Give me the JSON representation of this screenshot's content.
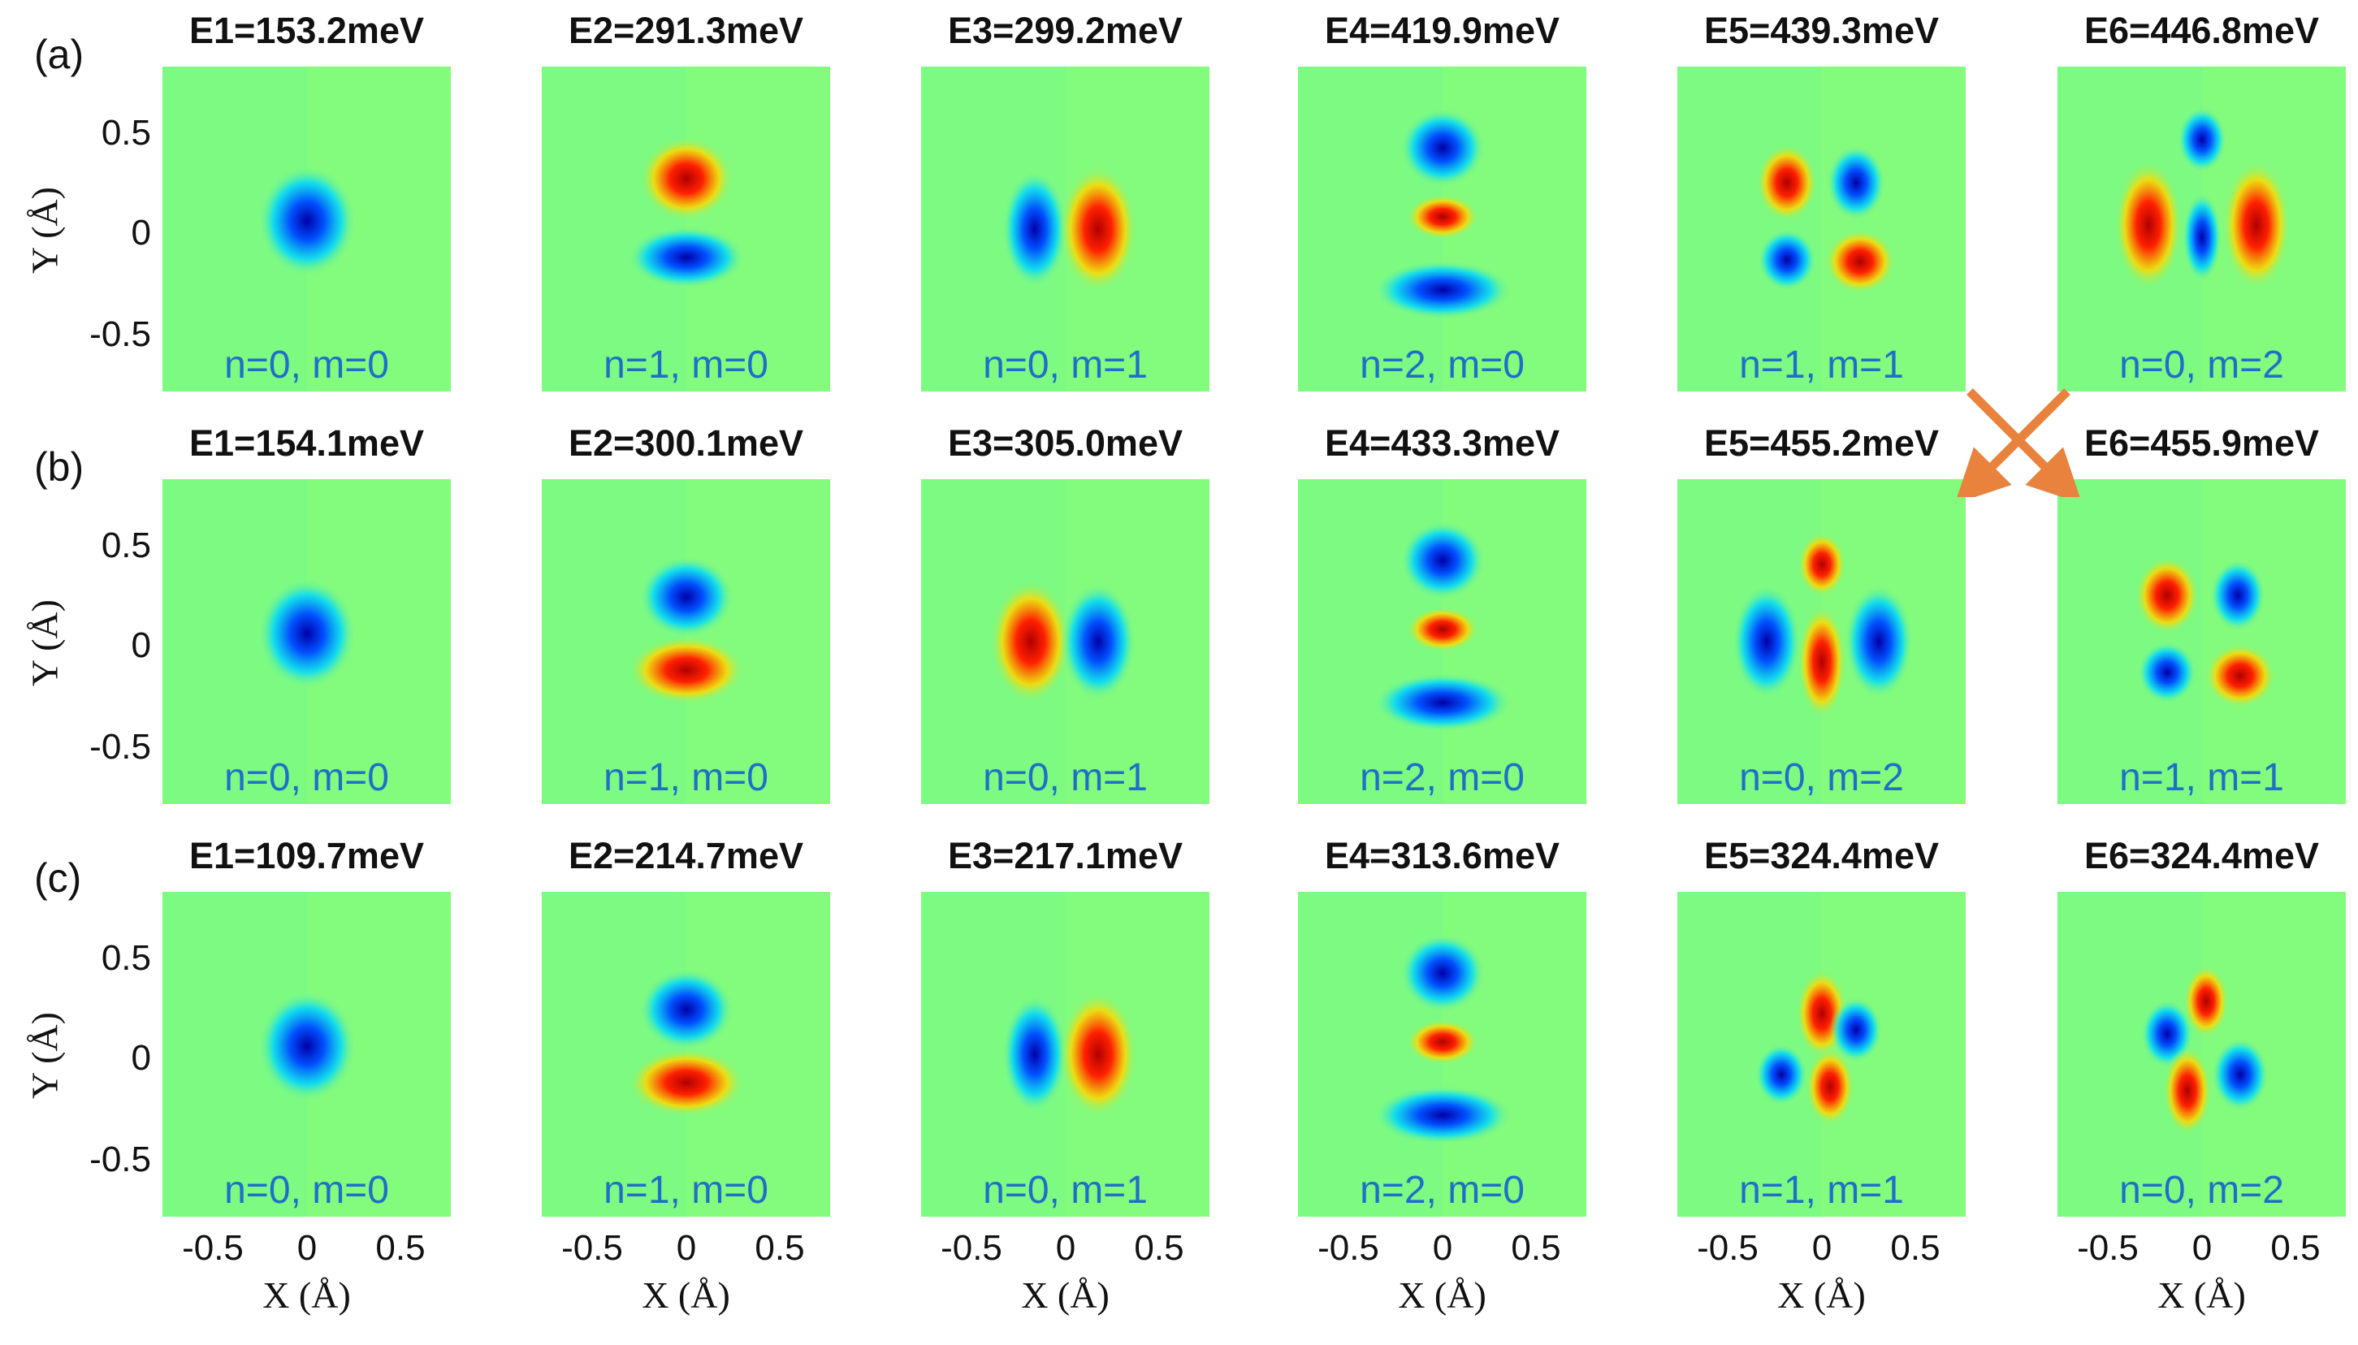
{
  "figure": {
    "rows": [
      {
        "label": "(a)",
        "panels": [
          {
            "energy": "E1=153.2meV",
            "quantum": "n=0, m=0",
            "mode": "n0m0"
          },
          {
            "energy": "E2=291.3meV",
            "quantum": "n=1, m=0",
            "mode": "n1m0_inv"
          },
          {
            "energy": "E3=299.2meV",
            "quantum": "n=0, m=1",
            "mode": "n0m1"
          },
          {
            "energy": "E4=419.9meV",
            "quantum": "n=2, m=0",
            "mode": "n2m0"
          },
          {
            "energy": "E5=439.3meV",
            "quantum": "n=1, m=1",
            "mode": "n1m1"
          },
          {
            "energy": "E6=446.8meV",
            "quantum": "n=0, m=2",
            "mode": "n0m2_h"
          }
        ]
      },
      {
        "label": "(b)",
        "panels": [
          {
            "energy": "E1=154.1meV",
            "quantum": "n=0, m=0",
            "mode": "n0m0"
          },
          {
            "energy": "E2=300.1meV",
            "quantum": "n=1, m=0",
            "mode": "n1m0"
          },
          {
            "energy": "E3=305.0meV",
            "quantum": "n=0, m=1",
            "mode": "n0m1_inv"
          },
          {
            "energy": "E4=433.3meV",
            "quantum": "n=2, m=0",
            "mode": "n2m0"
          },
          {
            "energy": "E5=455.2meV",
            "quantum": "n=0, m=2",
            "mode": "n0m2_tri"
          },
          {
            "energy": "E6=455.9meV",
            "quantum": "n=1, m=1",
            "mode": "n1m1_b"
          }
        ]
      },
      {
        "label": "(c)",
        "panels": [
          {
            "energy": "E1=109.7meV",
            "quantum": "n=0, m=0",
            "mode": "n0m0"
          },
          {
            "energy": "E2=214.7meV",
            "quantum": "n=1, m=0",
            "mode": "n1m0"
          },
          {
            "energy": "E3=217.1meV",
            "quantum": "n=0, m=1",
            "mode": "n0m1"
          },
          {
            "energy": "E4=313.6meV",
            "quantum": "n=2, m=0",
            "mode": "n2m0"
          },
          {
            "energy": "E5=324.4meV",
            "quantum": "n=1, m=1",
            "mode": "n1m1_c"
          },
          {
            "energy": "E6=324.4meV",
            "quantum": "n=0, m=2",
            "mode": "n0m2_c"
          }
        ]
      }
    ],
    "y_axis": {
      "label": "Y (Å)",
      "ticks": [
        "0.5",
        "0",
        "-0.5"
      ]
    },
    "x_axis": {
      "label": "X (Å)",
      "ticks": [
        "-0.5",
        "0",
        "0.5"
      ]
    },
    "colors": {
      "background": "#7dfa82",
      "negative_peak": "#0000a8",
      "negative_edge": "#00d8ff",
      "positive_peak": "#b00000",
      "positive_edge": "#ffd800",
      "quantum_label": "#1f6fc9",
      "arrow": "#e8823c"
    }
  }
}
